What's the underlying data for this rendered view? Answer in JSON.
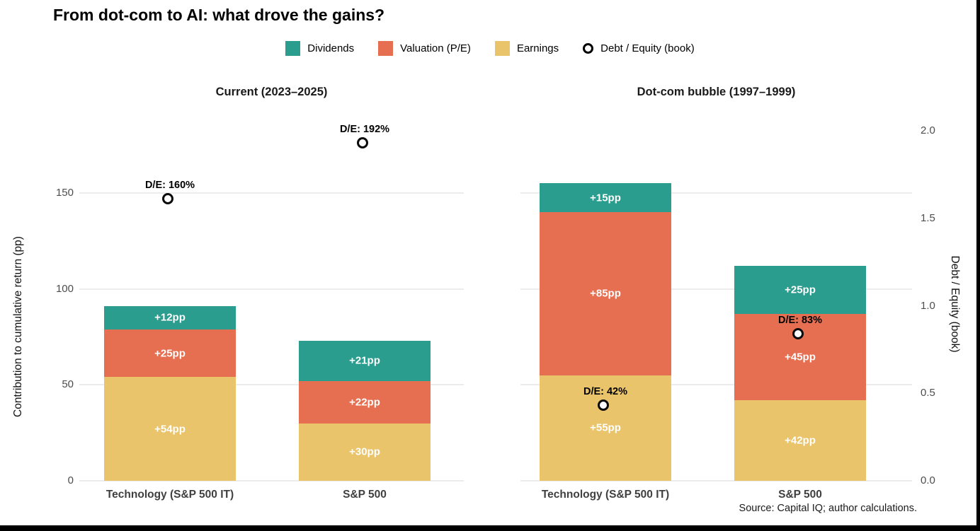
{
  "title": "From dot-com to AI: what drove the gains?",
  "legend": {
    "items": [
      {
        "label": "Dividends",
        "icon": "swatch-icon",
        "color": "#2a9d8f"
      },
      {
        "label": "Valuation (P/E)",
        "icon": "swatch-icon",
        "color": "#e76f51"
      },
      {
        "label": "Earnings",
        "icon": "swatch-icon",
        "color": "#e9c46a"
      },
      {
        "label": "Debt / Equity (book)",
        "icon": "open-circle-icon",
        "color": "#000000"
      }
    ]
  },
  "axes": {
    "left": {
      "label": "Contribution to cumulative return (pp)",
      "ticks": [
        "0",
        "50",
        "100",
        "150"
      ],
      "tick_values": [
        0,
        50,
        100,
        150
      ]
    },
    "right": {
      "label": "Debt / Equity (book)",
      "ticks": [
        "0.0",
        "0.5",
        "1.0",
        "1.5",
        "2.0"
      ],
      "tick_values": [
        0.0,
        0.5,
        1.0,
        1.5,
        2.0
      ]
    }
  },
  "colors": {
    "dividends": "#2a9d8f",
    "valuation": "#e76f51",
    "earnings": "#e9c46a",
    "gridline": "#ececec",
    "tick_text": "#4d4d4d",
    "marker_ring": "#0a0a0a",
    "marker_fill": "#ffffff"
  },
  "source": "Source: Capital IQ; author calculations.",
  "chart_data": {
    "type": "bar",
    "stacked": true,
    "title": "From dot-com to AI: what drove the gains?",
    "ylabel_left": "Contribution to cumulative return (pp)",
    "ylabel_right": "Debt / Equity (book)",
    "ylim_left": [
      0,
      190
    ],
    "ylim_right": [
      0,
      2.0
    ],
    "yticks_left": [
      0,
      50,
      100,
      150
    ],
    "yticks_right": [
      0.0,
      0.5,
      1.0,
      1.5,
      2.0
    ],
    "grid": true,
    "legend_position": "top",
    "stack_order_bottom_to_top": [
      "Earnings",
      "Valuation (P/E)",
      "Dividends"
    ],
    "series_colors": {
      "Earnings": "#e9c46a",
      "Valuation (P/E)": "#e76f51",
      "Dividends": "#2a9d8f"
    },
    "facets": [
      {
        "title": "Current (2023–2025)",
        "categories": [
          "Technology (S&P 500 IT)",
          "S&P 500"
        ],
        "series": [
          {
            "name": "Earnings",
            "values": [
              54,
              30
            ],
            "labels": [
              "+54pp",
              "+30pp"
            ]
          },
          {
            "name": "Valuation (P/E)",
            "values": [
              25,
              22
            ],
            "labels": [
              "+25pp",
              "+22pp"
            ]
          },
          {
            "name": "Dividends",
            "values": [
              12,
              21
            ],
            "labels": [
              "+12pp",
              "+21pp"
            ]
          }
        ],
        "debt_equity": {
          "values": [
            1.6,
            1.92
          ],
          "labels": [
            "D/E: 160%",
            "D/E: 192%"
          ]
        }
      },
      {
        "title": "Dot-com bubble (1997–1999)",
        "categories": [
          "Technology (S&P 500 IT)",
          "S&P 500"
        ],
        "series": [
          {
            "name": "Earnings",
            "values": [
              55,
              42
            ],
            "labels": [
              "+55pp",
              "+42pp"
            ]
          },
          {
            "name": "Valuation (P/E)",
            "values": [
              85,
              45
            ],
            "labels": [
              "+85pp",
              "+45pp"
            ]
          },
          {
            "name": "Dividends",
            "values": [
              15,
              25
            ],
            "labels": [
              "+15pp",
              "+25pp"
            ]
          }
        ],
        "debt_equity": {
          "values": [
            0.42,
            0.83
          ],
          "labels": [
            "D/E: 42%",
            "D/E: 83%"
          ]
        }
      }
    ]
  }
}
